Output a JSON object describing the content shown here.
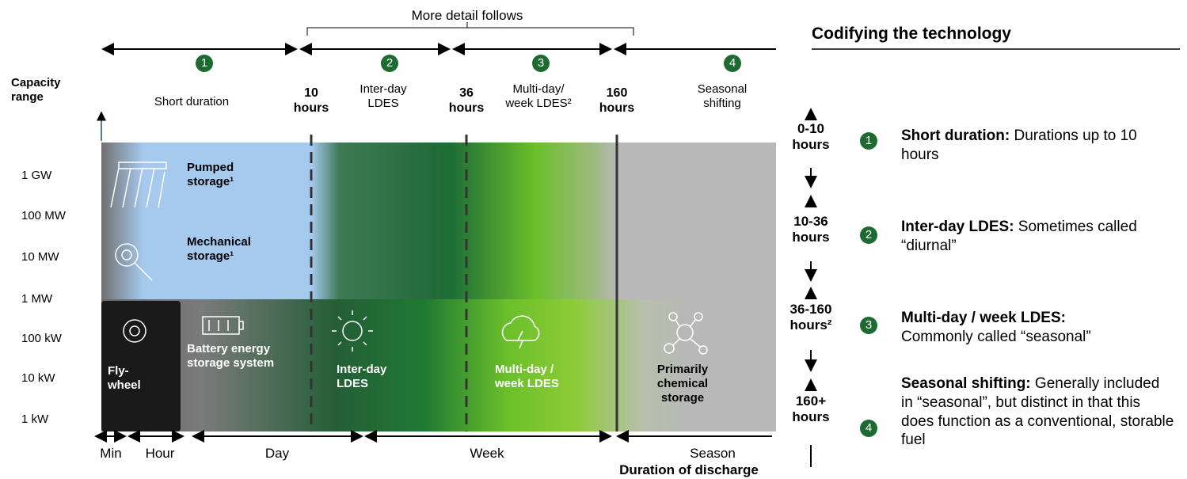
{
  "header": {
    "more_detail": "More detail follows"
  },
  "capacity": {
    "title": "Capacity\nrange",
    "levels": [
      "1 GW",
      "100 MW",
      "10 MW",
      "1 MW",
      "100 kW",
      "10 kW",
      "1 kW"
    ]
  },
  "phases": [
    {
      "number": "1",
      "label": "Short duration"
    },
    {
      "number": "2",
      "label": "Inter-day\nLDES"
    },
    {
      "number": "3",
      "label": "Multi-day/\nweek LDES²"
    },
    {
      "number": "4",
      "label": "Seasonal\nshifting"
    }
  ],
  "boundaries": [
    "10\nhours",
    "36\nhours",
    "160\nhours"
  ],
  "technologies": {
    "pumped": "Pumped\nstorage¹",
    "mechanical": "Mechanical\nstorage¹",
    "flywheel": "Fly-\nwheel",
    "battery": "Battery energy\nstorage system",
    "interday": "Inter-day\nLDES",
    "multiday": "Multi-day /\nweek LDES",
    "chemical": "Primarily\nchemical\nstorage"
  },
  "time_axis": {
    "labels": [
      "Min",
      "Hour",
      "Day",
      "Week",
      "Season"
    ],
    "title": "Duration of discharge"
  },
  "panel": {
    "title": "Codifying the technology",
    "ranges": [
      "0-10\nhours",
      "10-36\nhours",
      "36-160\nhours²",
      "160+\nhours"
    ],
    "items": [
      {
        "number": "1",
        "term": "Short duration:",
        "text": " Durations up to 10 hours"
      },
      {
        "number": "2",
        "term": "Inter-day LDES:",
        "text": " Sometimes called “diurnal”"
      },
      {
        "number": "3",
        "term": "Multi-day / week LDES:",
        "text": " Commonly called “seasonal”"
      },
      {
        "number": "4",
        "term": "Seasonal shifting:",
        "text": " Generally included in “seasonal”, but distinct in that this does function as a conventional, storable fuel"
      }
    ]
  }
}
